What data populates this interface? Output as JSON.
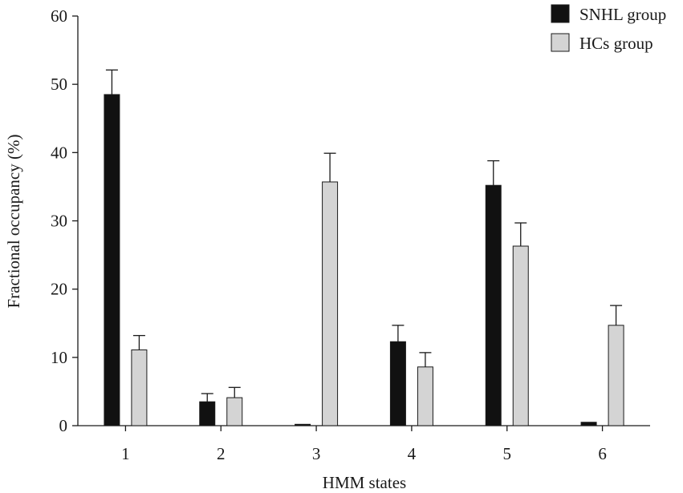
{
  "chart_data": {
    "type": "bar",
    "xlabel": "HMM states",
    "ylabel": "Fractional occupancy (%)",
    "ylim": [
      0,
      60
    ],
    "yticks": [
      0,
      10,
      20,
      30,
      40,
      50,
      60
    ],
    "categories": [
      "1",
      "2",
      "3",
      "4",
      "5",
      "6"
    ],
    "error_bars": "upper",
    "legend_position": "top-right",
    "grid": false,
    "series": [
      {
        "name": "SNHL group",
        "color": "#111111",
        "values": [
          48.5,
          3.5,
          0.2,
          12.3,
          35.2,
          0.5
        ],
        "errors": [
          3.6,
          1.2,
          0.0,
          2.4,
          3.6,
          0.0
        ]
      },
      {
        "name": "HCs group",
        "color": "#d4d4d4",
        "values": [
          11.1,
          4.1,
          35.7,
          8.6,
          26.3,
          14.7
        ],
        "errors": [
          2.1,
          1.5,
          4.2,
          2.1,
          3.4,
          2.9
        ]
      }
    ]
  }
}
